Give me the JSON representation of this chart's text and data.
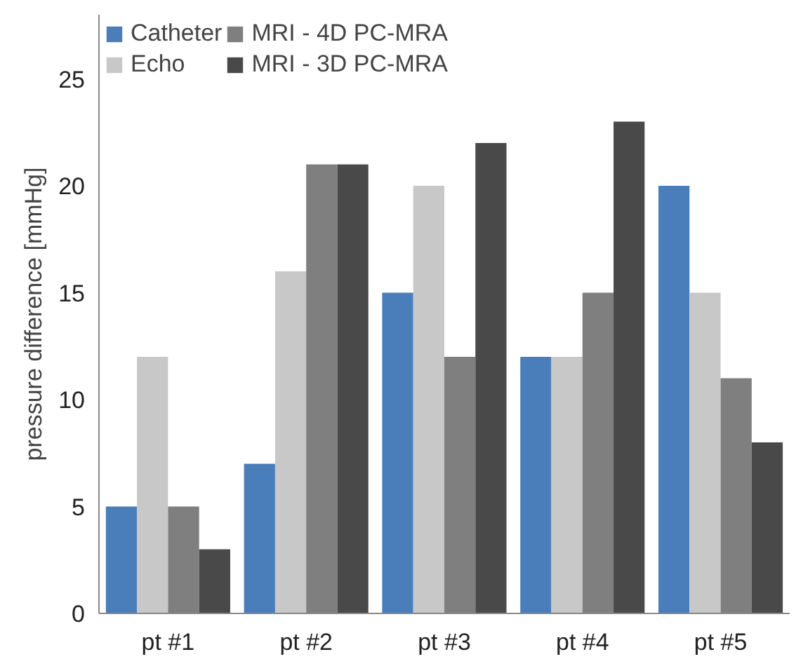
{
  "chart_data": {
    "type": "bar",
    "ylabel": "pressure difference [mmHg]",
    "categories": [
      "pt #1",
      "pt #2",
      "pt #3",
      "pt #4",
      "pt #5"
    ],
    "series": [
      {
        "name": "Catheter",
        "color": "#4a7ebb",
        "values": [
          5,
          7,
          15,
          12,
          20
        ]
      },
      {
        "name": "Echo",
        "color": "#c8c8c8",
        "values": [
          12,
          16,
          20,
          12,
          15
        ]
      },
      {
        "name": "MRI - 4D PC-MRA",
        "color": "#7f7f7f",
        "values": [
          5,
          21,
          12,
          15,
          11
        ]
      },
      {
        "name": "MRI - 3D PC-MRA",
        "color": "#494949",
        "values": [
          3,
          21,
          22,
          23,
          8
        ]
      }
    ],
    "ylim": [
      0,
      28
    ],
    "yticks": [
      0,
      5,
      10,
      15,
      20,
      25
    ],
    "grid": false,
    "legend": "top left"
  }
}
